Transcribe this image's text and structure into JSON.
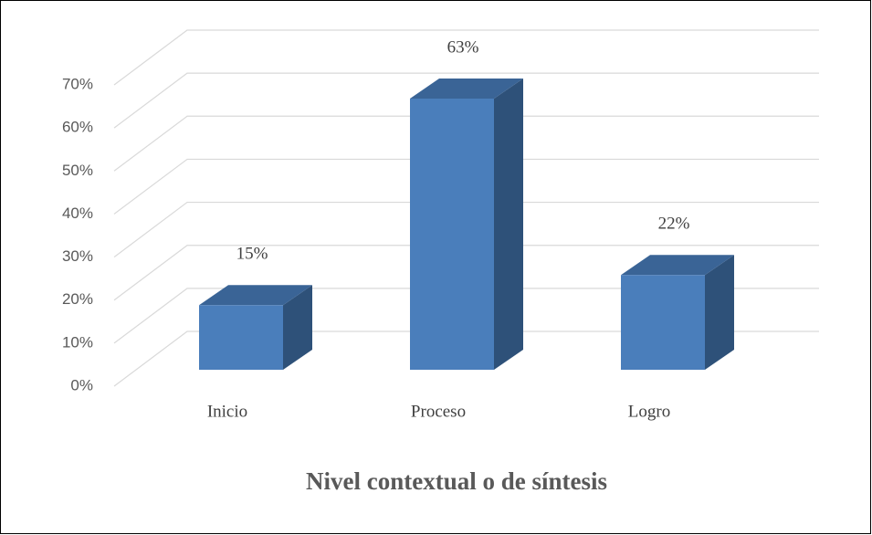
{
  "chart_data": {
    "type": "bar3d",
    "title": "Nivel contextual o de síntesis",
    "categories": [
      "Inicio",
      "Proceso",
      "Logro"
    ],
    "values": [
      15,
      63,
      22
    ],
    "value_labels": [
      "15%",
      "63%",
      "22%"
    ],
    "color": "#4a7ebb",
    "ylim": [
      0,
      70
    ],
    "yticks": [
      {
        "value": 0,
        "label": "0%"
      },
      {
        "value": 10,
        "label": "10%"
      },
      {
        "value": 20,
        "label": "20%"
      },
      {
        "value": 30,
        "label": "30%"
      },
      {
        "value": 40,
        "label": "40%"
      },
      {
        "value": 50,
        "label": "50%"
      },
      {
        "value": 60,
        "label": "60%"
      },
      {
        "value": 70,
        "label": "70%"
      }
    ],
    "grid": true
  }
}
